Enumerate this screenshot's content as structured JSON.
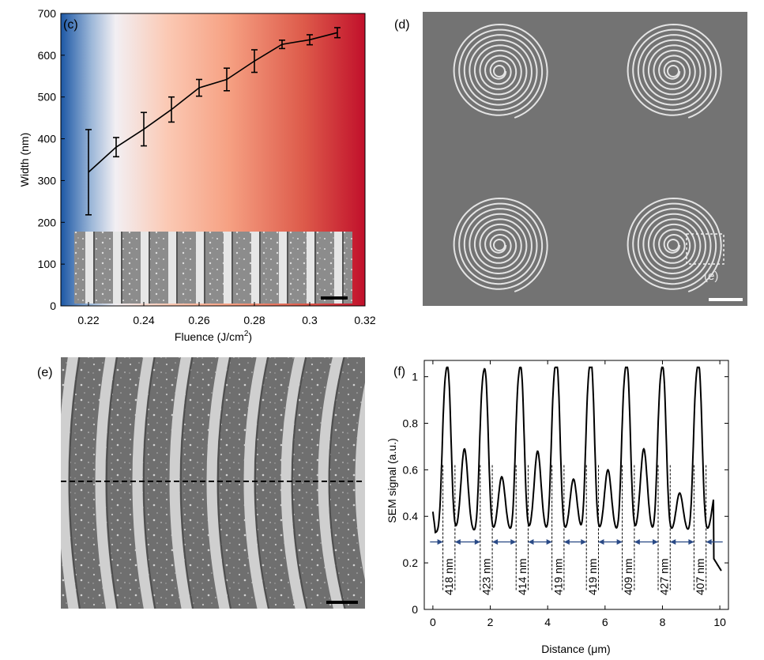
{
  "panels": {
    "c": {
      "tag": "(c)"
    },
    "d": {
      "tag": "(d)",
      "inset_label": "(e)"
    },
    "e": {
      "tag": "(e)"
    },
    "f": {
      "tag": "(f)"
    }
  },
  "colors": {
    "gradient": [
      "#1f5aa6",
      "#f3f1f4",
      "#fbb8a0",
      "#f5957a",
      "#c0102a"
    ],
    "line": "#000000",
    "sem_background": "#7a7a7a",
    "sem_feature": "#d9d9d9",
    "arrow": "#2a4a86"
  },
  "chart_data": [
    {
      "panel": "c",
      "type": "line",
      "xlabel": "Fluence (J/cm",
      "xlabel_sup": "2",
      "xlabel_close": ")",
      "ylabel": "Width (nm)",
      "xlim": [
        0.21,
        0.32
      ],
      "ylim": [
        0,
        700
      ],
      "xticks": [
        0.22,
        0.24,
        0.26,
        0.28,
        0.3,
        0.32
      ],
      "xtick_labels": [
        "0.22",
        "0.24",
        "0.26",
        "0.28",
        "0.3",
        "0.32"
      ],
      "yticks": [
        0,
        100,
        200,
        300,
        400,
        500,
        600,
        700
      ],
      "ytick_labels": [
        "0",
        "100",
        "200",
        "300",
        "400",
        "500",
        "600",
        "700"
      ],
      "x": [
        0.22,
        0.23,
        0.24,
        0.25,
        0.26,
        0.27,
        0.28,
        0.29,
        0.3,
        0.31
      ],
      "y": [
        320,
        380,
        423,
        470,
        522,
        542,
        586,
        626,
        637,
        654
      ],
      "err": [
        102,
        23,
        40,
        30,
        20,
        27,
        27,
        10,
        12,
        12
      ],
      "background": "color gradient blue-white-red along fluence",
      "inset": "SEM image of parallel lines with scale bar"
    },
    {
      "panel": "f",
      "type": "line",
      "xlabel": "Distance (μm)",
      "ylabel": "SEM signal (a.u.)",
      "xlim": [
        -0.3,
        10.3
      ],
      "ylim": [
        0,
        1.07
      ],
      "xticks": [
        0,
        2,
        4,
        6,
        8,
        10
      ],
      "xtick_labels": [
        "0",
        "2",
        "4",
        "6",
        "8",
        "10"
      ],
      "yticks": [
        0,
        0.2,
        0.4,
        0.6,
        0.8,
        1
      ],
      "ytick_labels": [
        "0",
        "0.2",
        "0.4",
        "0.6",
        "0.8",
        "1"
      ],
      "peak_centers": [
        0.55,
        1.85,
        3.1,
        4.35,
        5.55,
        6.8,
        8.05,
        9.3
      ],
      "peak_heights": [
        0.98,
        0.97,
        0.98,
        1.0,
        1.0,
        0.99,
        0.98,
        0.99
      ],
      "shoulder_heights": [
        0.69,
        0.57,
        0.68,
        0.56,
        0.6,
        0.69,
        0.5,
        0.5
      ],
      "width_labels": [
        "418 nm",
        "423 nm",
        "414 nm",
        "419 nm",
        "419 nm",
        "409 nm",
        "427 nm",
        "407 nm"
      ],
      "arrow_level": 0.29
    }
  ]
}
